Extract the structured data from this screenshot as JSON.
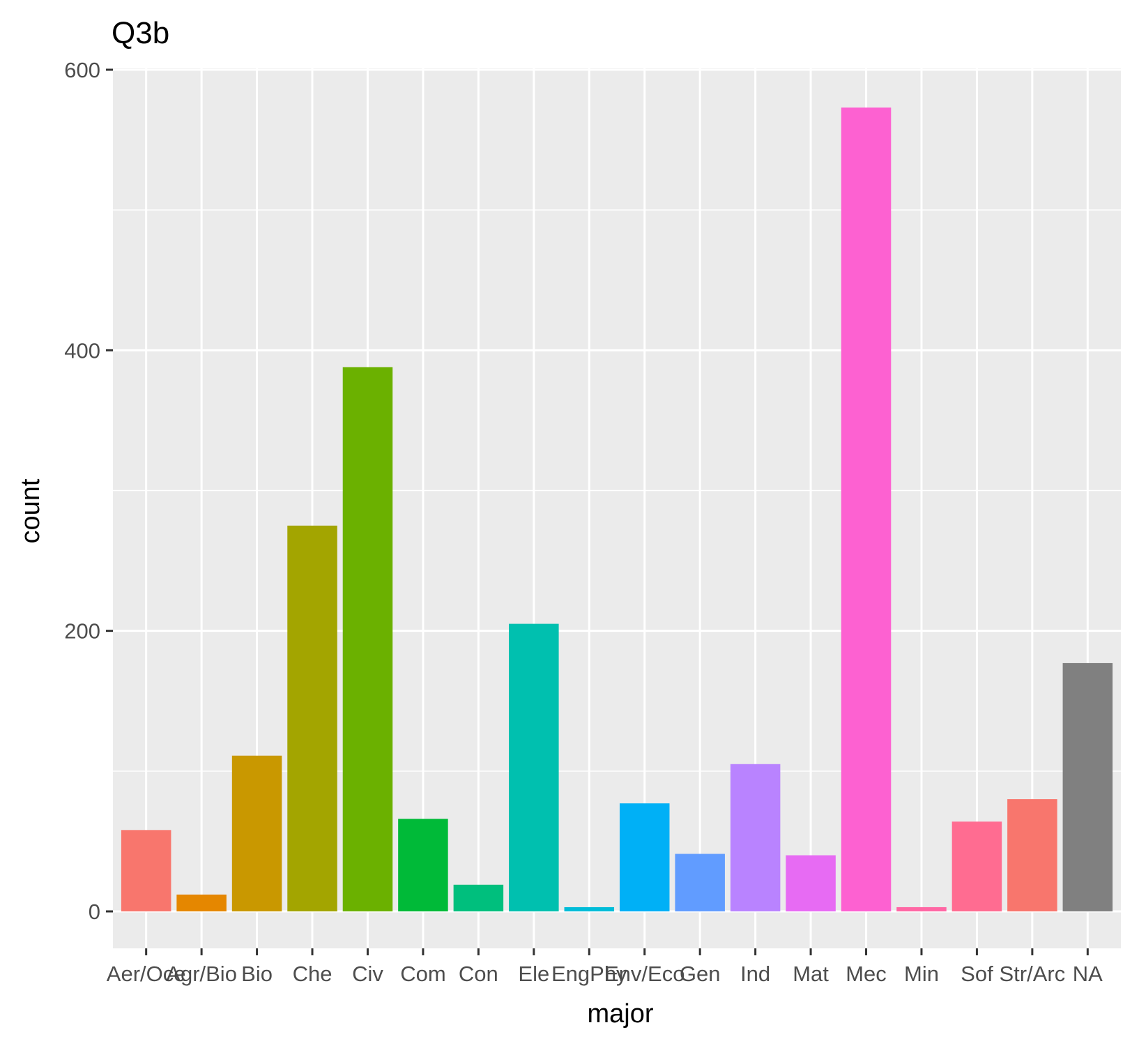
{
  "chart_data": {
    "type": "bar",
    "title": "Q3b",
    "xlabel": "major",
    "ylabel": "count",
    "ylim": [
      -28,
      600
    ],
    "yticks": [
      0,
      200,
      400,
      600
    ],
    "grid": true,
    "legend": "none",
    "categories": [
      "Aer/Oce",
      "Agr/Bio",
      "Bio",
      "Che",
      "Civ",
      "Com",
      "Con",
      "Ele",
      "EngPhy",
      "Env/Eco",
      "Gen",
      "Ind",
      "Mat",
      "Mec",
      "Min",
      "Sof",
      "Str/Arc",
      "NA"
    ],
    "values": [
      58,
      12,
      111,
      275,
      388,
      66,
      19,
      205,
      3,
      77,
      41,
      105,
      40,
      573,
      3,
      64,
      80,
      177
    ],
    "colors": [
      "#F8766D",
      "#E58700",
      "#C99800",
      "#A3A500",
      "#6BB100",
      "#00BA38",
      "#00BF7D",
      "#00C0AF",
      "#00BCD8",
      "#00B0F6",
      "#619CFF",
      "#B983FF",
      "#E76BF3",
      "#FD61D1",
      "#FF67A4",
      "#FF6C91",
      "#F8766D",
      "#808080"
    ]
  }
}
